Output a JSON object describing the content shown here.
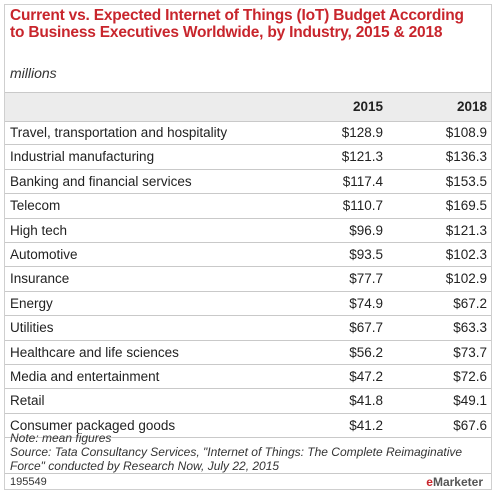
{
  "chart_data": {
    "type": "table",
    "title": "Current vs. Expected Internet of Things (IoT) Budget According to Business Executives Worldwide, by Industry, 2015 & 2018",
    "subtitle": "millions",
    "columns": [
      "2015",
      "2018"
    ],
    "rows": [
      {
        "label": "Travel, transportation and hospitality",
        "values": [
          "$128.9",
          "$108.9"
        ]
      },
      {
        "label": "Industrial manufacturing",
        "values": [
          "$121.3",
          "$136.3"
        ]
      },
      {
        "label": "Banking and financial services",
        "values": [
          "$117.4",
          "$153.5"
        ]
      },
      {
        "label": "Telecom",
        "values": [
          "$110.7",
          "$169.5"
        ]
      },
      {
        "label": "High tech",
        "values": [
          "$96.9",
          "$121.3"
        ]
      },
      {
        "label": "Automotive",
        "values": [
          "$93.5",
          "$102.3"
        ]
      },
      {
        "label": "Insurance",
        "values": [
          "$77.7",
          "$102.9"
        ]
      },
      {
        "label": "Energy",
        "values": [
          "$74.9",
          "$67.2"
        ]
      },
      {
        "label": "Utilities",
        "values": [
          "$67.7",
          "$63.3"
        ]
      },
      {
        "label": "Healthcare and life sciences",
        "values": [
          "$56.2",
          "$73.7"
        ]
      },
      {
        "label": "Media and entertainment",
        "values": [
          "$47.2",
          "$72.6"
        ]
      },
      {
        "label": "Retail",
        "values": [
          "$41.8",
          "$49.1"
        ]
      },
      {
        "label": "Consumer packaged goods",
        "values": [
          "$41.2",
          "$67.6"
        ]
      }
    ],
    "note": "Note: mean figures",
    "source": "Source: Tata Consultancy Services, \"Internet of Things: The Complete Reimaginative Force\" conducted by Research Now, July 22, 2015"
  },
  "footer": {
    "chart_id": "195549",
    "brand_prefix": "e",
    "brand_name": "Marketer"
  },
  "colors": {
    "title": "#c8252c",
    "header_bg": "#ececec",
    "rule": "#c9c9c9"
  }
}
